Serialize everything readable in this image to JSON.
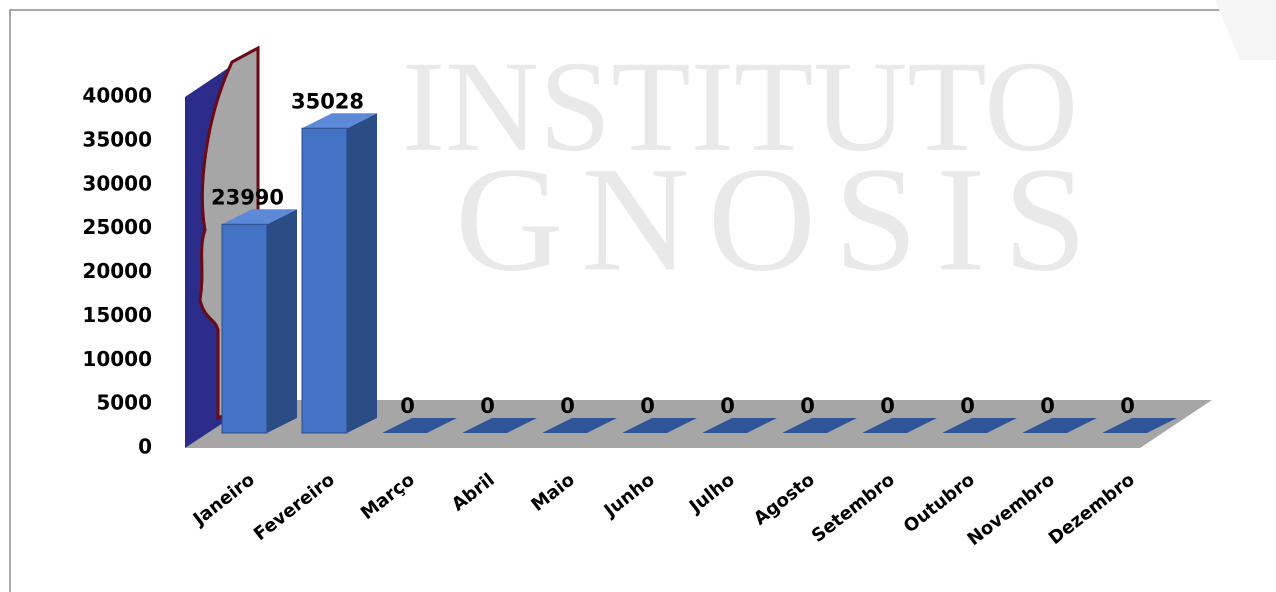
{
  "chart_data": {
    "type": "bar3d",
    "watermark": [
      "INSTITUTO",
      "GNOSIS"
    ],
    "categories": [
      "Janeiro",
      "Fevereiro",
      "Março",
      "Abril",
      "Maio",
      "Junho",
      "Julho",
      "Agosto",
      "Setembro",
      "Outubro",
      "Novembro",
      "Dezembro"
    ],
    "values": [
      23990,
      35028,
      0,
      0,
      0,
      0,
      0,
      0,
      0,
      0,
      0,
      0
    ],
    "color": "#4472c4",
    "ylim": [
      0,
      40000
    ],
    "yticks": [
      0,
      5000,
      10000,
      15000,
      20000,
      25000,
      30000,
      35000,
      40000
    ],
    "data_labels": true
  }
}
